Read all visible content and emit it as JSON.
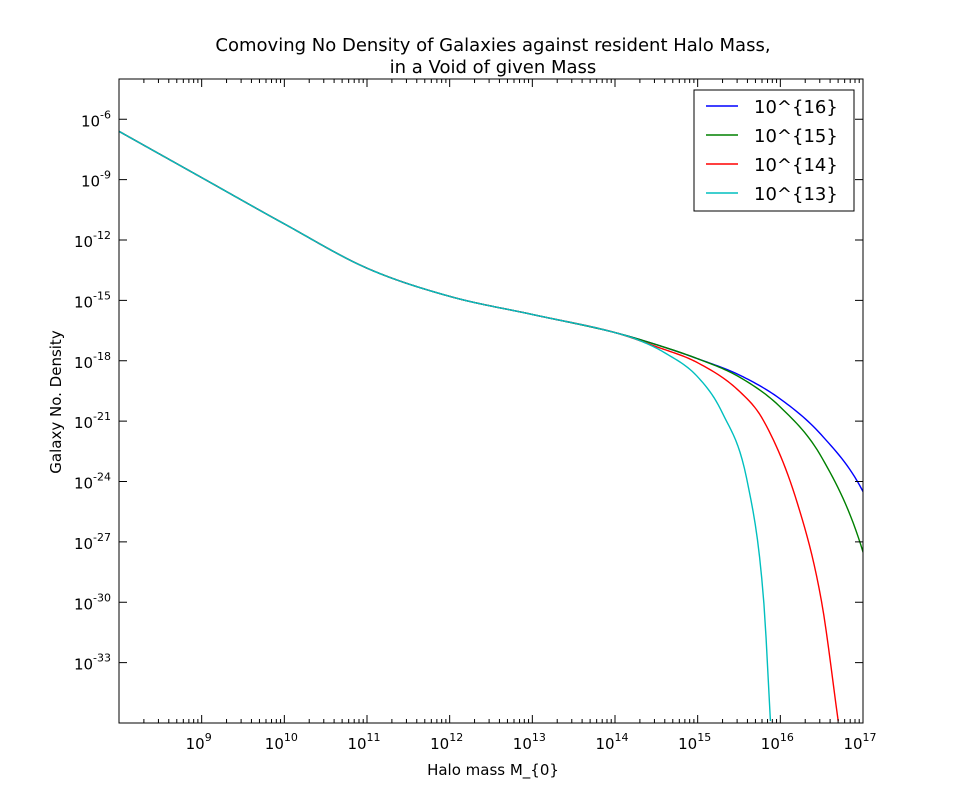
{
  "chart_data": {
    "type": "line",
    "title_line1": "Comoving No Density of Galaxies against resident Halo Mass,",
    "title_line2": "in a Void of given Mass",
    "xlabel": "Halo mass M_{0}",
    "ylabel": "Galaxy No. Density",
    "xscale": "log",
    "yscale": "log",
    "xlim": [
      100000000.0,
      1e+17
    ],
    "ylim": [
      1e-36,
      0.0001
    ],
    "x_ticks": [
      {
        "exp": 9,
        "label_base": "10",
        "label_exp": "9"
      },
      {
        "exp": 10,
        "label_base": "10",
        "label_exp": "10"
      },
      {
        "exp": 11,
        "label_base": "10",
        "label_exp": "11"
      },
      {
        "exp": 12,
        "label_base": "10",
        "label_exp": "12"
      },
      {
        "exp": 13,
        "label_base": "10",
        "label_exp": "13"
      },
      {
        "exp": 14,
        "label_base": "10",
        "label_exp": "14"
      },
      {
        "exp": 15,
        "label_base": "10",
        "label_exp": "15"
      },
      {
        "exp": 16,
        "label_base": "10",
        "label_exp": "16"
      },
      {
        "exp": 17,
        "label_base": "10",
        "label_exp": "17"
      }
    ],
    "y_ticks": [
      {
        "exp": -6,
        "label_base": "10",
        "label_exp": "-6"
      },
      {
        "exp": -9,
        "label_base": "10",
        "label_exp": "-9"
      },
      {
        "exp": -12,
        "label_base": "10",
        "label_exp": "-12"
      },
      {
        "exp": -15,
        "label_base": "10",
        "label_exp": "-15"
      },
      {
        "exp": -18,
        "label_base": "10",
        "label_exp": "-18"
      },
      {
        "exp": -21,
        "label_base": "10",
        "label_exp": "-21"
      },
      {
        "exp": -24,
        "label_base": "10",
        "label_exp": "-24"
      },
      {
        "exp": -27,
        "label_base": "10",
        "label_exp": "-27"
      },
      {
        "exp": -30,
        "label_base": "10",
        "label_exp": "-30"
      },
      {
        "exp": -33,
        "label_base": "10",
        "label_exp": "-33"
      }
    ],
    "legend_position": "top-right",
    "grid": false,
    "common_curve": {
      "log_x": [
        8.0,
        9.0,
        10.0,
        11.0,
        12.0,
        13.0,
        14.0
      ],
      "log_y": [
        -6.6,
        -8.9,
        -11.2,
        -13.4,
        -14.8,
        -15.7,
        -16.6
      ]
    },
    "series": [
      {
        "name": "10^{16}",
        "color": "#0000ff",
        "log_x": [
          14.5,
          15.0,
          15.5,
          16.0,
          16.5,
          17.0,
          17.4
        ],
        "log_y": [
          -17.2,
          -17.9,
          -18.7,
          -19.9,
          -21.7,
          -24.5,
          -28.6
        ]
      },
      {
        "name": "10^{15}",
        "color": "#008000",
        "log_x": [
          14.5,
          15.0,
          15.5,
          16.0,
          16.5,
          17.0,
          17.2,
          17.35
        ],
        "log_y": [
          -17.2,
          -17.9,
          -18.8,
          -20.3,
          -22.8,
          -27.5,
          -31.0,
          -35.9
        ]
      },
      {
        "name": "10^{14}",
        "color": "#ff0000",
        "log_x": [
          14.5,
          15.0,
          15.5,
          15.8,
          16.2,
          16.5,
          16.7
        ],
        "log_y": [
          -17.3,
          -18.1,
          -19.5,
          -21.0,
          -25.0,
          -30.0,
          -35.9
        ]
      },
      {
        "name": "10^{13}",
        "color": "#00bfbf",
        "log_x": [
          14.3,
          14.6,
          15.0,
          15.3,
          15.6,
          15.8,
          15.88
        ],
        "log_y": [
          -17.0,
          -17.6,
          -18.8,
          -20.6,
          -24.0,
          -30.0,
          -35.9
        ]
      }
    ]
  }
}
